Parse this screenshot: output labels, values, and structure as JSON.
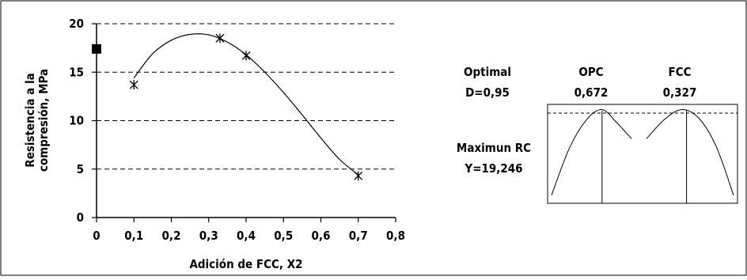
{
  "chart_data": {
    "type": "scatter",
    "xlabel": "Adición de FCC, X2",
    "ylabel_lines": [
      "Resistencia a la",
      "compresión, MPa"
    ],
    "xlim": [
      0,
      0.8
    ],
    "ylim": [
      0,
      20
    ],
    "x_ticks": [
      "0",
      "0,1",
      "0,2",
      "0,3",
      "0,4",
      "0,5",
      "0,6",
      "0,7",
      "0,8"
    ],
    "y_ticks": [
      "0",
      "5",
      "10",
      "15",
      "20"
    ],
    "grid": "horizontal dashed",
    "square_point": {
      "x": 0,
      "y": 17.4
    },
    "star_points": [
      {
        "x": 0.1,
        "y": 13.7
      },
      {
        "x": 0.33,
        "y": 18.5
      },
      {
        "x": 0.4,
        "y": 16.7
      },
      {
        "x": 0.7,
        "y": 4.3
      }
    ],
    "fit_curve": [
      {
        "x": 0.1,
        "y": 14.4
      },
      {
        "x": 0.15,
        "y": 16.9
      },
      {
        "x": 0.2,
        "y": 18.3
      },
      {
        "x": 0.25,
        "y": 18.9
      },
      {
        "x": 0.3,
        "y": 18.85
      },
      {
        "x": 0.35,
        "y": 18.1
      },
      {
        "x": 0.4,
        "y": 16.8
      },
      {
        "x": 0.45,
        "y": 15.0
      },
      {
        "x": 0.5,
        "y": 12.9
      },
      {
        "x": 0.55,
        "y": 10.6
      },
      {
        "x": 0.6,
        "y": 8.2
      },
      {
        "x": 0.65,
        "y": 6.0
      },
      {
        "x": 0.7,
        "y": 4.4
      }
    ]
  },
  "optimizer": {
    "optimal_label": "Optimal",
    "d_value": "D=0,95",
    "factors": [
      {
        "name": "OPC",
        "value": "0,672"
      },
      {
        "name": "FCC",
        "value": "0,327"
      }
    ],
    "response_label": "Maximun RC",
    "y_value": "Y=19,246",
    "panels": [
      {
        "curve": [
          [
            0.0,
            0.06
          ],
          [
            0.2,
            0.55
          ],
          [
            0.4,
            0.86
          ],
          [
            0.58,
            0.97
          ],
          [
            0.75,
            0.83
          ],
          [
            0.92,
            0.66
          ]
        ]
      },
      {
        "curve": [
          [
            0.0,
            0.66
          ],
          [
            0.2,
            0.86
          ],
          [
            0.4,
            0.97
          ],
          [
            0.6,
            0.88
          ],
          [
            0.8,
            0.58
          ],
          [
            1.0,
            0.06
          ]
        ]
      }
    ],
    "setting_fraction": [
      0.58,
      0.46
    ]
  }
}
